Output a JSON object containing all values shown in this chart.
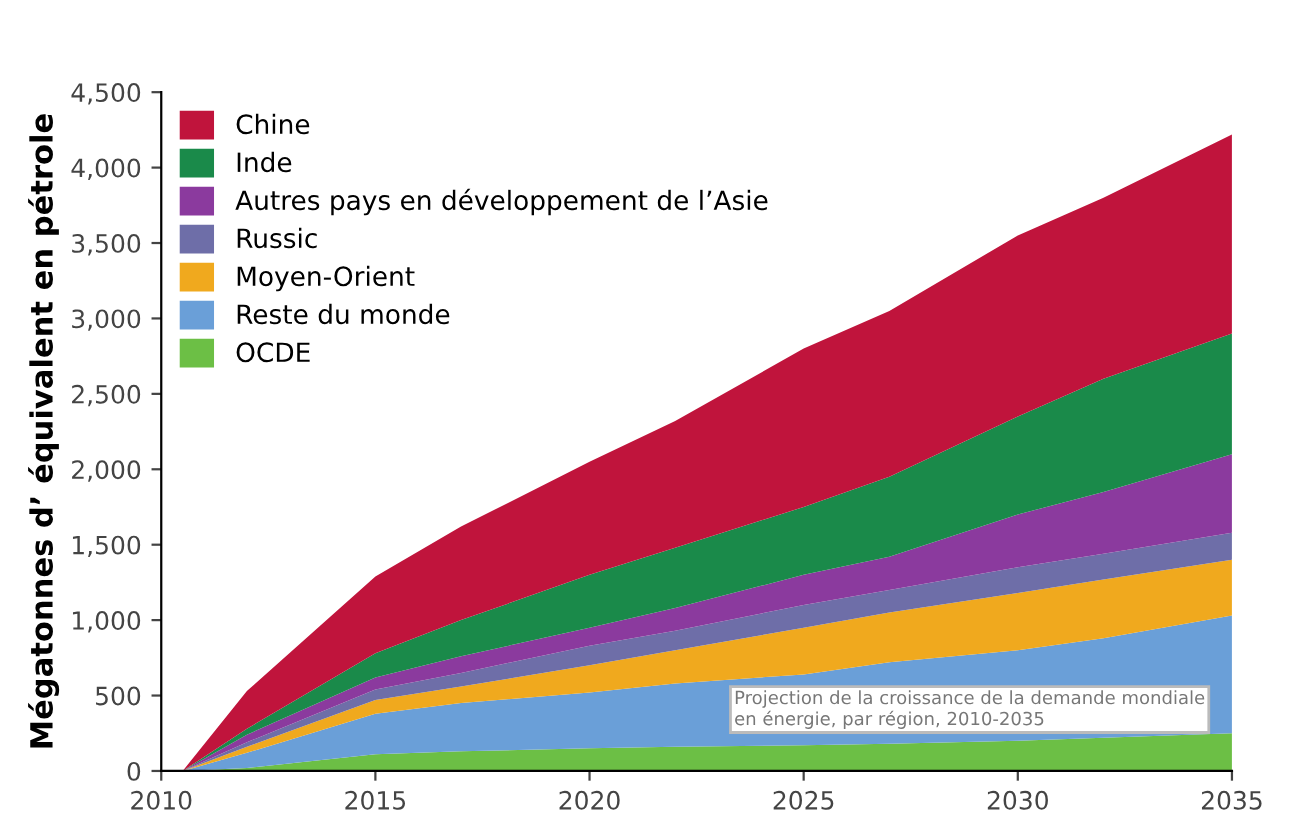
{
  "chart_data": {
    "type": "area",
    "stacked": true,
    "ylabel": "Mégatonnes d’ équivalent en pétrole",
    "x": [
      2010.5,
      2012,
      2015,
      2017,
      2020,
      2022,
      2025,
      2027,
      2030,
      2032,
      2035
    ],
    "series": [
      {
        "name": "OCDE",
        "color": "#6cbf45",
        "values": [
          0,
          20,
          110,
          130,
          150,
          160,
          170,
          180,
          200,
          220,
          250
        ]
      },
      {
        "name": "Reste du monde",
        "color": "#6a9fd8",
        "values": [
          0,
          100,
          270,
          320,
          370,
          420,
          470,
          540,
          600,
          660,
          780
        ]
      },
      {
        "name": "Moyen-Orient",
        "color": "#f0a91e",
        "values": [
          0,
          40,
          90,
          110,
          180,
          220,
          310,
          330,
          380,
          390,
          370
        ]
      },
      {
        "name": "Russic",
        "color": "#6e6ea8",
        "values": [
          0,
          30,
          70,
          90,
          130,
          130,
          150,
          150,
          170,
          170,
          180
        ]
      },
      {
        "name": "Autres pays en développement de l’Asie",
        "color": "#8b3a9e",
        "values": [
          0,
          50,
          80,
          110,
          120,
          150,
          200,
          220,
          350,
          410,
          520
        ]
      },
      {
        "name": "Inde",
        "color": "#1a8a4a",
        "values": [
          0,
          40,
          160,
          240,
          350,
          400,
          450,
          530,
          650,
          750,
          800
        ]
      },
      {
        "name": "Chine",
        "color": "#c0143c",
        "values": [
          0,
          250,
          510,
          620,
          750,
          840,
          1050,
          1100,
          1200,
          1200,
          1320
        ]
      }
    ],
    "xlim": [
      2010,
      2035
    ],
    "xticks": [
      2010,
      2015,
      2020,
      2025,
      2030,
      2035
    ],
    "ylim": [
      0,
      4500
    ],
    "yticks": [
      0,
      500,
      {
        "value": 1000,
        "label": "1,000"
      },
      {
        "value": 1500,
        "label": "1,500"
      },
      {
        "value": 2000,
        "label": "2,000"
      },
      {
        "value": 2500,
        "label": "2,500"
      },
      {
        "value": 3000,
        "label": "3,000"
      },
      {
        "value": 3500,
        "label": "3,500"
      },
      {
        "value": 4000,
        "label": "4,000"
      },
      {
        "value": 4500,
        "label": "4,500"
      }
    ],
    "annotations": [
      "Projection de la croissance de la demande mondiale\nen énergie, par région, 2010-2035"
    ],
    "legend": "top left",
    "grid": false
  }
}
